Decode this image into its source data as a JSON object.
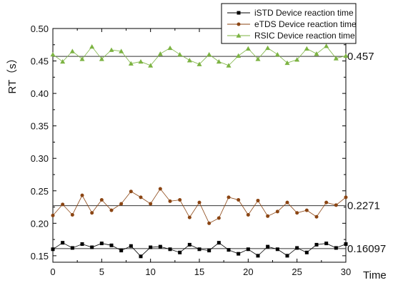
{
  "chart_data": {
    "type": "line",
    "title": "",
    "xlabel": "Time",
    "ylabel": "RT（s）",
    "xlim": [
      0,
      30
    ],
    "ylim": [
      0.14,
      0.5
    ],
    "x_ticks": [
      "0",
      "5",
      "10",
      "15",
      "20",
      "25",
      "30"
    ],
    "y_ticks": [
      "0.15",
      "0.20",
      "0.25",
      "0.30",
      "0.35",
      "0.40",
      "0.45",
      "0.50"
    ],
    "x": [
      0,
      1,
      2,
      3,
      4,
      5,
      6,
      7,
      8,
      9,
      10,
      11,
      12,
      13,
      14,
      15,
      16,
      17,
      18,
      19,
      20,
      21,
      22,
      23,
      24,
      25,
      26,
      27,
      28,
      29,
      30
    ],
    "grid": false,
    "legend_position": "top-right",
    "series": [
      {
        "name": "iSTD Device reaction time",
        "color": "#000000",
        "marker": "square",
        "mean": 0.16097,
        "mean_label": "0.16097",
        "values": [
          0.16,
          0.17,
          0.162,
          0.168,
          0.163,
          0.169,
          0.166,
          0.158,
          0.165,
          0.149,
          0.163,
          0.164,
          0.16,
          0.155,
          0.167,
          0.16,
          0.158,
          0.17,
          0.159,
          0.153,
          0.16,
          0.15,
          0.164,
          0.16,
          0.15,
          0.162,
          0.155,
          0.167,
          0.169,
          0.162,
          0.168
        ]
      },
      {
        "name": "eTDS Device reaction time",
        "color": "#8B4513",
        "marker": "circle",
        "mean": 0.2271,
        "mean_label": "0.2271",
        "values": [
          0.212,
          0.229,
          0.213,
          0.243,
          0.216,
          0.236,
          0.22,
          0.23,
          0.249,
          0.24,
          0.23,
          0.253,
          0.234,
          0.236,
          0.209,
          0.232,
          0.2,
          0.208,
          0.24,
          0.236,
          0.213,
          0.235,
          0.211,
          0.218,
          0.232,
          0.216,
          0.22,
          0.21,
          0.232,
          0.228,
          0.24
        ]
      },
      {
        "name": "RSIC Device reaction time",
        "color": "#7CB342",
        "marker": "triangle",
        "mean": 0.457,
        "mean_label": "0.457",
        "values": [
          0.46,
          0.449,
          0.465,
          0.453,
          0.472,
          0.453,
          0.467,
          0.465,
          0.446,
          0.449,
          0.443,
          0.461,
          0.47,
          0.46,
          0.451,
          0.445,
          0.46,
          0.449,
          0.443,
          0.458,
          0.469,
          0.453,
          0.47,
          0.46,
          0.447,
          0.452,
          0.469,
          0.461,
          0.473,
          0.454,
          0.458
        ]
      }
    ]
  }
}
